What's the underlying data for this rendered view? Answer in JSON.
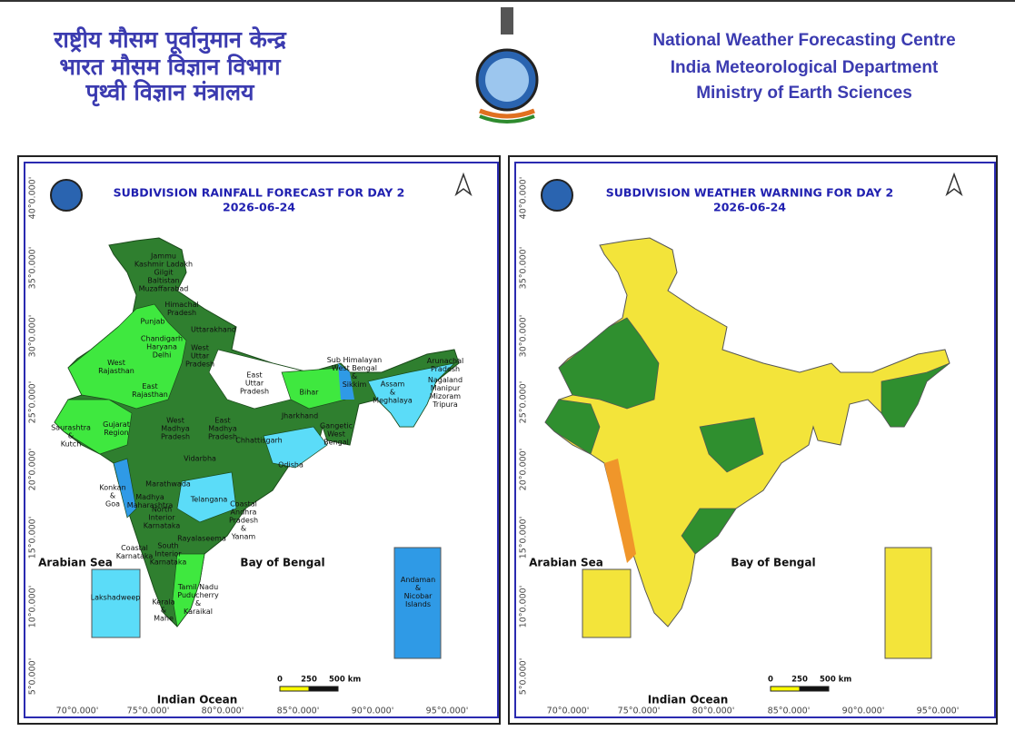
{
  "header": {
    "hindi_lines": [
      "राष्ट्रीय मौसम पूर्वानुमान केन्द्र",
      "भारत मौसम विज्ञान विभाग",
      "पृथ्वी विज्ञान मंत्रालय"
    ],
    "english_lines": [
      "National Weather Forecasting Centre",
      "India Meteorological Department",
      "Ministry of Earth Sciences"
    ]
  },
  "panels": [
    {
      "title": "SUBDIVISION RAINFALL FORECAST FOR DAY 2",
      "date": "2026-06-24",
      "lat_labels": [
        "40°0.000'",
        "35°0.000'",
        "30°0.000'",
        "25°0.000'",
        "20°0.000'",
        "15°0.000'",
        "10°0.000'",
        "5°0.000'"
      ],
      "lon_labels": [
        "70°0.000'",
        "75°0.000'",
        "80°0.000'",
        "85°0.000'",
        "90°0.000'",
        "95°0.000'"
      ],
      "sea_labels": [
        "Arabian Sea",
        "Bay of Bengal",
        "Indian Ocean"
      ],
      "scale_labels": [
        "0",
        "250",
        "500 km"
      ],
      "regions": [
        [
          "Jammu",
          "Kashmir Ladakh",
          "Gilgit",
          "Baltistan",
          "Muzaffarabad"
        ],
        [
          "Himachal",
          "Pradesh"
        ],
        [
          "Punjab"
        ],
        [
          "Uttarakhand"
        ],
        [
          "Chandigarh",
          "Haryana",
          "Delhi"
        ],
        [
          "West",
          "Uttar",
          "Pradesh"
        ],
        [
          "East",
          "Uttar",
          "Pradesh"
        ],
        [
          "West",
          "Rajasthan"
        ],
        [
          "East",
          "Rajasthan"
        ],
        [
          "Bihar"
        ],
        [
          "Sub Himalayan",
          "West Bengal",
          "&",
          "Sikkim"
        ],
        [
          "Arunachal",
          "Pradesh"
        ],
        [
          "Assam",
          "&",
          "Meghalaya"
        ],
        [
          "Nagaland",
          "Manipur",
          "Mizoram",
          "Tripura"
        ],
        [
          "Jharkhand"
        ],
        [
          "Gangetic",
          "West",
          "Bengal"
        ],
        [
          "Saurashtra",
          "&",
          "Kutch"
        ],
        [
          "Gujarat",
          "Region"
        ],
        [
          "West",
          "Madhya",
          "Pradesh"
        ],
        [
          "East",
          "Madhya",
          "Pradesh"
        ],
        [
          "Chhattisgarh"
        ],
        [
          "Odisha"
        ],
        [
          "Vidarbha"
        ],
        [
          "Marathwada"
        ],
        [
          "Madhya",
          "Maharashtra"
        ],
        [
          "Konkan",
          "&",
          "Goa"
        ],
        [
          "Telangana"
        ],
        [
          "North",
          "Interior",
          "Karnataka"
        ],
        [
          "Coastal",
          "Andhra",
          "Pradesh",
          "&",
          "Yanam"
        ],
        [
          "Rayalaseema"
        ],
        [
          "Coastal",
          "Karnataka"
        ],
        [
          "South",
          "Interior",
          "Karnataka"
        ],
        [
          "Tamil Nadu",
          "Puducherry",
          "&",
          "Karaikal"
        ],
        [
          "Kerala",
          "&",
          "Mahe"
        ],
        [
          "Lakshadweep"
        ],
        [
          "Andaman",
          "&",
          "Nicobar",
          "Islands"
        ]
      ]
    },
    {
      "title": "SUBDIVISION WEATHER WARNING FOR DAY 2",
      "date": "2026-06-24",
      "lat_labels": [
        "40°0.000'",
        "35°0.000'",
        "30°0.000'",
        "25°0.000'",
        "20°0.000'",
        "15°0.000'",
        "10°0.000'",
        "5°0.000'"
      ],
      "lon_labels": [
        "70°0.000'",
        "75°0.000'",
        "80°0.000'",
        "85°0.000'",
        "90°0.000'",
        "95°0.000'"
      ],
      "sea_labels": [
        "Arabian Sea",
        "Bay of Bengal",
        "Indian Ocean"
      ],
      "scale_labels": [
        "0",
        "250",
        "500 km"
      ],
      "regions": []
    }
  ]
}
